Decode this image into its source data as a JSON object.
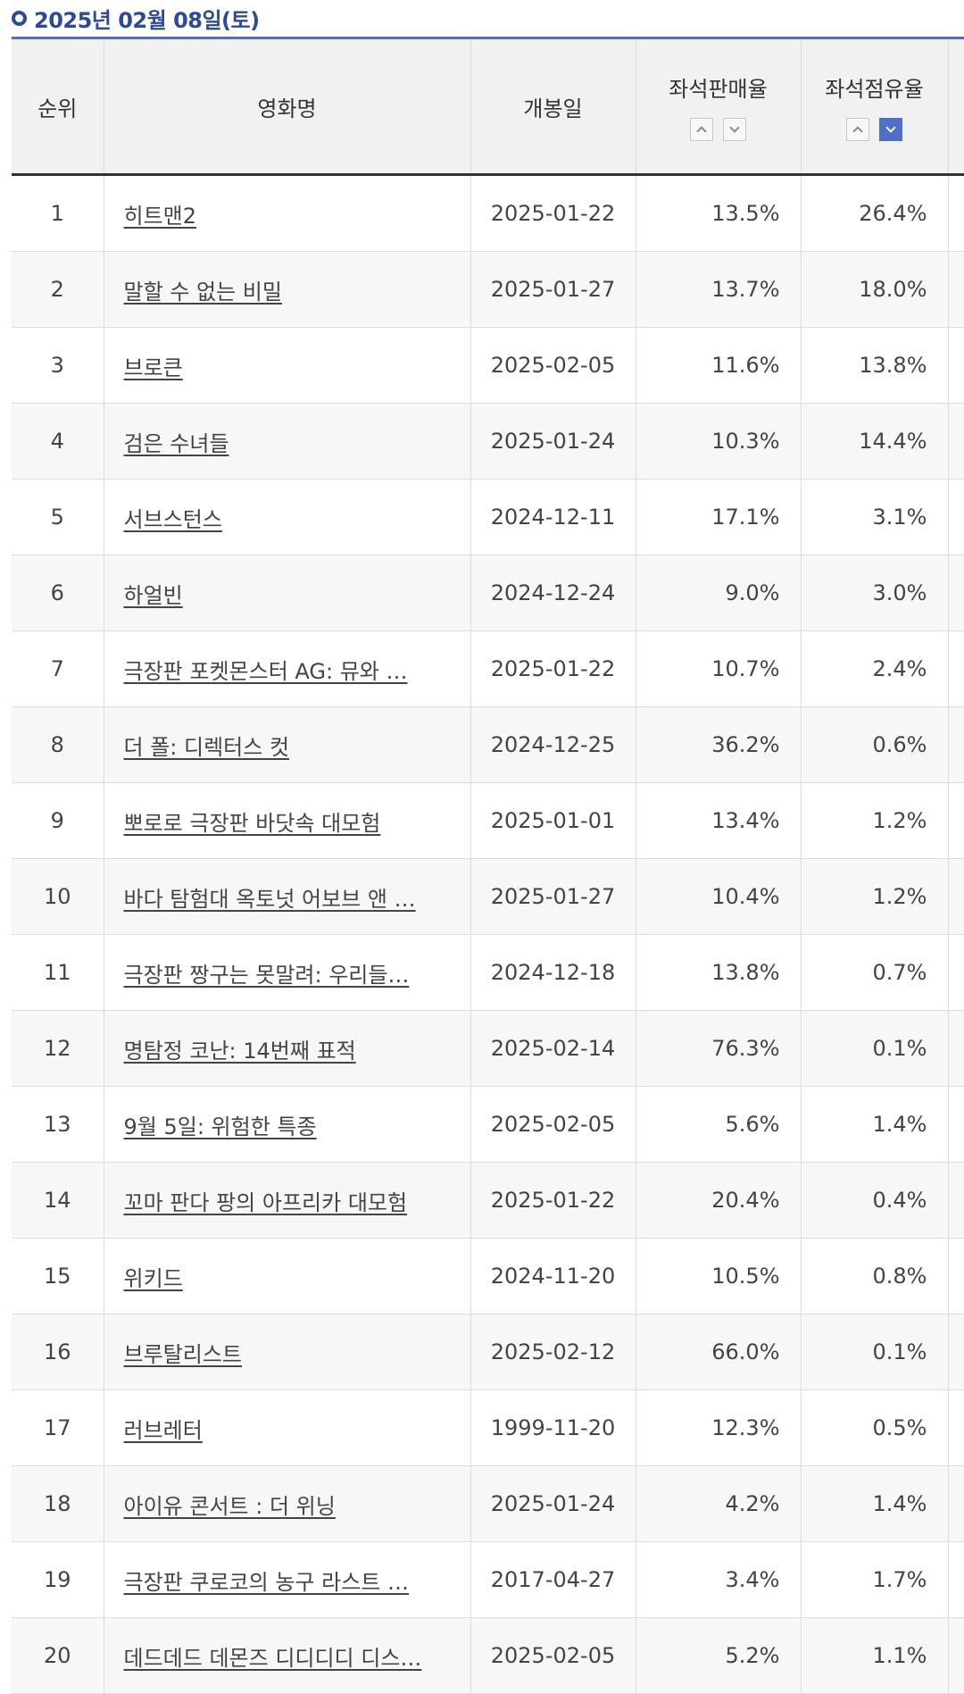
{
  "header": {
    "date": "2025년 02월 08일(토)"
  },
  "columns": {
    "rank": "순위",
    "title": "영화명",
    "open_date": "개봉일",
    "seat_sales": "좌석판매율",
    "seat_share": "좌석점유율"
  },
  "sorting": {
    "seat_share_active": "desc"
  },
  "colors": {
    "accent": "#4f70c6",
    "title_blue": "#2d4a9a"
  },
  "rows": [
    {
      "rank": "1",
      "title": "히트맨2",
      "open_date": "2025-01-22",
      "seat_sales": "13.5%",
      "seat_share": "26.4%"
    },
    {
      "rank": "2",
      "title": "말할 수 없는 비밀",
      "open_date": "2025-01-27",
      "seat_sales": "13.7%",
      "seat_share": "18.0%"
    },
    {
      "rank": "3",
      "title": "브로큰",
      "open_date": "2025-02-05",
      "seat_sales": "11.6%",
      "seat_share": "13.8%"
    },
    {
      "rank": "4",
      "title": "검은 수녀들",
      "open_date": "2025-01-24",
      "seat_sales": "10.3%",
      "seat_share": "14.4%"
    },
    {
      "rank": "5",
      "title": "서브스턴스",
      "open_date": "2024-12-11",
      "seat_sales": "17.1%",
      "seat_share": "3.1%"
    },
    {
      "rank": "6",
      "title": "하얼빈",
      "open_date": "2024-12-24",
      "seat_sales": "9.0%",
      "seat_share": "3.0%"
    },
    {
      "rank": "7",
      "title": "극장판 포켓몬스터 AG: 뮤와 …",
      "open_date": "2025-01-22",
      "seat_sales": "10.7%",
      "seat_share": "2.4%"
    },
    {
      "rank": "8",
      "title": "더 폴: 디렉터스 컷",
      "open_date": "2024-12-25",
      "seat_sales": "36.2%",
      "seat_share": "0.6%"
    },
    {
      "rank": "9",
      "title": "뽀로로 극장판 바닷속 대모험",
      "open_date": "2025-01-01",
      "seat_sales": "13.4%",
      "seat_share": "1.2%"
    },
    {
      "rank": "10",
      "title": "바다 탐험대 옥토넛 어보브 앤 …",
      "open_date": "2025-01-27",
      "seat_sales": "10.4%",
      "seat_share": "1.2%"
    },
    {
      "rank": "11",
      "title": "극장판 짱구는 못말려: 우리들…",
      "open_date": "2024-12-18",
      "seat_sales": "13.8%",
      "seat_share": "0.7%"
    },
    {
      "rank": "12",
      "title": "명탐정 코난: 14번째 표적",
      "open_date": "2025-02-14",
      "seat_sales": "76.3%",
      "seat_share": "0.1%"
    },
    {
      "rank": "13",
      "title": "9월 5일: 위험한 특종",
      "open_date": "2025-02-05",
      "seat_sales": "5.6%",
      "seat_share": "1.4%"
    },
    {
      "rank": "14",
      "title": "꼬마 판다 팡의 아프리카 대모험",
      "open_date": "2025-01-22",
      "seat_sales": "20.4%",
      "seat_share": "0.4%"
    },
    {
      "rank": "15",
      "title": "위키드",
      "open_date": "2024-11-20",
      "seat_sales": "10.5%",
      "seat_share": "0.8%"
    },
    {
      "rank": "16",
      "title": "브루탈리스트",
      "open_date": "2025-02-12",
      "seat_sales": "66.0%",
      "seat_share": "0.1%"
    },
    {
      "rank": "17",
      "title": "러브레터",
      "open_date": "1999-11-20",
      "seat_sales": "12.3%",
      "seat_share": "0.5%"
    },
    {
      "rank": "18",
      "title": "아이유 콘서트 : 더 위닝",
      "open_date": "2025-01-24",
      "seat_sales": "4.2%",
      "seat_share": "1.4%"
    },
    {
      "rank": "19",
      "title": "극장판 쿠로코의 농구 라스트 …",
      "open_date": "2017-04-27",
      "seat_sales": "3.4%",
      "seat_share": "1.7%"
    },
    {
      "rank": "20",
      "title": "데드데드 데몬즈 디디디디 디스…",
      "open_date": "2025-02-05",
      "seat_sales": "5.2%",
      "seat_share": "1.1%"
    }
  ]
}
